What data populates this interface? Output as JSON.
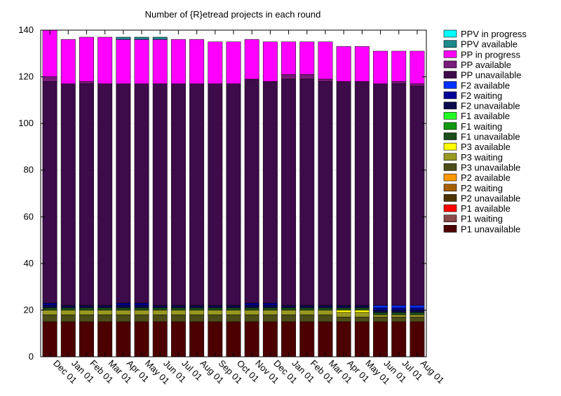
{
  "chart_data": {
    "type": "bar",
    "stacked": true,
    "title": "Number of {R}etread projects in each round",
    "xlabel": "",
    "ylabel": "",
    "ylim": [
      0,
      140
    ],
    "yticks": [
      0,
      20,
      40,
      60,
      80,
      100,
      120,
      140
    ],
    "grid": true,
    "legend_position": "right",
    "categories": [
      "Dec 01",
      "Jan 01",
      "Feb 01",
      "Mar 01",
      "Apr 01",
      "May 01",
      "Jun 01",
      "Jul 01",
      "Aug 01",
      "Sep 01",
      "Oct 01",
      "Nov 01",
      "Dec 01",
      "Jan 01",
      "Feb 01",
      "Mar 01",
      "Apr 01",
      "May 01",
      "Jun 01",
      "Jul 01",
      "Aug 01"
    ],
    "series": [
      {
        "name": "P1 unavailable",
        "color": "#4d0000",
        "values": [
          15,
          15,
          15,
          15,
          15,
          15,
          15,
          15,
          15,
          15,
          15,
          15,
          15,
          15,
          15,
          15,
          15,
          15,
          15,
          15,
          15
        ]
      },
      {
        "name": "P1 waiting",
        "color": "#8c4a4a",
        "values": [
          0,
          0,
          0,
          0,
          0,
          0,
          0,
          0,
          0,
          0,
          0,
          0,
          0,
          0,
          0,
          0,
          0,
          0,
          0,
          0,
          0
        ]
      },
      {
        "name": "P1 available",
        "color": "#ff0000",
        "values": [
          0,
          0,
          0,
          0,
          0,
          0,
          0,
          0,
          0,
          0,
          0,
          0,
          0,
          0,
          0,
          0,
          0,
          0,
          0,
          0,
          0
        ]
      },
      {
        "name": "P2 unavailable",
        "color": "#4d3300",
        "values": [
          0,
          0,
          0,
          0,
          0,
          0,
          0,
          0,
          0,
          0,
          0,
          0,
          0,
          0,
          0,
          0,
          0,
          0,
          0,
          0,
          0
        ]
      },
      {
        "name": "P2 waiting",
        "color": "#a65f00",
        "values": [
          0,
          0,
          0,
          0,
          0,
          0,
          0,
          0,
          0,
          0,
          0,
          0,
          0,
          0,
          0,
          0,
          0,
          0,
          0,
          0,
          0
        ]
      },
      {
        "name": "P2 available",
        "color": "#ff9900",
        "values": [
          0,
          0,
          0,
          0,
          0,
          0,
          0,
          0,
          0,
          0,
          0,
          0,
          0,
          0,
          0,
          0,
          0,
          0,
          0,
          0,
          0
        ]
      },
      {
        "name": "P3 unavailable",
        "color": "#4d4d1a",
        "values": [
          3,
          3,
          3,
          3,
          3,
          3,
          3,
          3,
          3,
          3,
          3,
          3,
          3,
          3,
          3,
          3,
          2,
          2,
          2,
          2,
          2
        ]
      },
      {
        "name": "P3 waiting",
        "color": "#999922",
        "values": [
          2,
          2,
          2,
          2,
          2,
          2,
          2,
          2,
          2,
          2,
          2,
          2,
          2,
          2,
          2,
          2,
          2,
          2,
          1,
          1,
          1
        ]
      },
      {
        "name": "P3 available",
        "color": "#ffff00",
        "values": [
          0,
          0,
          0,
          0,
          0,
          0,
          0,
          0,
          0,
          0,
          0,
          0,
          0,
          0,
          0,
          0,
          1,
          1,
          0,
          0,
          0
        ]
      },
      {
        "name": "F1 unavailable",
        "color": "#1a4d1a",
        "values": [
          1,
          1,
          1,
          1,
          1,
          1,
          1,
          1,
          1,
          1,
          1,
          1,
          1,
          1,
          1,
          1,
          1,
          1,
          1,
          1,
          1
        ]
      },
      {
        "name": "F1 waiting",
        "color": "#119911",
        "values": [
          0,
          0,
          0,
          0,
          0,
          0,
          0,
          0,
          0,
          0,
          0,
          0,
          0,
          0,
          0,
          0,
          0,
          0,
          0,
          0,
          0
        ]
      },
      {
        "name": "F1 available",
        "color": "#22ff22",
        "values": [
          0,
          0,
          0,
          0,
          0,
          0,
          0,
          0,
          0,
          0,
          0,
          0,
          0,
          0,
          0,
          0,
          0,
          0,
          0,
          0,
          0
        ]
      },
      {
        "name": "F2 unavailable",
        "color": "#0a0a4d",
        "values": [
          1,
          1,
          1,
          1,
          1,
          1,
          1,
          1,
          1,
          1,
          1,
          1,
          1,
          1,
          1,
          1,
          1,
          1,
          1,
          1,
          1
        ]
      },
      {
        "name": "F2 waiting",
        "color": "#000099",
        "values": [
          1,
          0,
          0,
          0,
          1,
          1,
          0,
          0,
          0,
          0,
          0,
          1,
          1,
          0,
          0,
          0,
          0,
          0,
          1,
          1,
          1
        ]
      },
      {
        "name": "F2 available",
        "color": "#0033ff",
        "values": [
          0,
          0,
          0,
          0,
          0,
          0,
          0,
          0,
          0,
          0,
          0,
          0,
          0,
          0,
          0,
          0,
          0,
          0,
          1,
          1,
          1
        ]
      },
      {
        "name": "PP unavailable",
        "color": "#3d0a4a",
        "values": [
          95,
          95,
          95,
          95,
          94,
          94,
          95,
          95,
          95,
          95,
          95,
          96,
          95,
          97,
          97,
          96,
          96,
          96,
          95,
          95,
          94
        ]
      },
      {
        "name": "PP available",
        "color": "#7a1a7a",
        "values": [
          2,
          0,
          1,
          0,
          0,
          0,
          0,
          0,
          0,
          0,
          0,
          0,
          0,
          2,
          2,
          1,
          0,
          0,
          0,
          1,
          1
        ]
      },
      {
        "name": "PP in progress",
        "color": "#ff00ff",
        "values": [
          20,
          19,
          19,
          20,
          19,
          19,
          19,
          19,
          19,
          18,
          18,
          17,
          17,
          14,
          14,
          16,
          15,
          15,
          14,
          13,
          14
        ]
      },
      {
        "name": "PPV available",
        "color": "#1a8a8a",
        "values": [
          0,
          0,
          0,
          0,
          1,
          1,
          1,
          0,
          0,
          0,
          0,
          0,
          0,
          0,
          0,
          0,
          0,
          0,
          0,
          0,
          0
        ]
      },
      {
        "name": "PPV in progress",
        "color": "#00ffff",
        "values": [
          0,
          0,
          0,
          0,
          0,
          0,
          0,
          0,
          0,
          0,
          0,
          0,
          0,
          0,
          0,
          0,
          0,
          0,
          0,
          0,
          0
        ]
      }
    ]
  }
}
